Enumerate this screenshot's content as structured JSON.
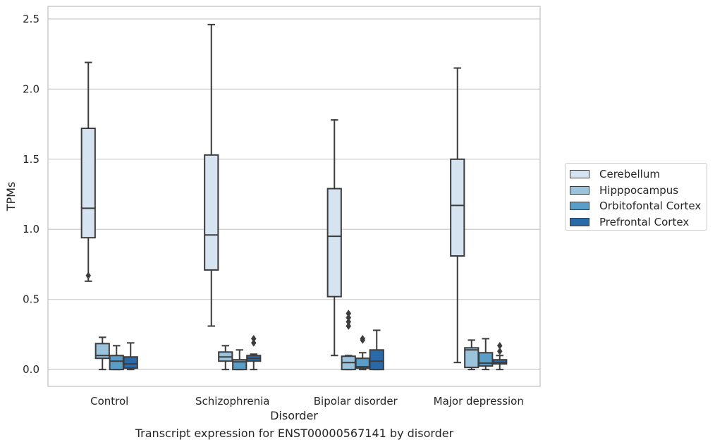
{
  "chart_data": {
    "type": "box",
    "title": "Transcript expression for ENST00000567141 by disorder",
    "xlabel": "Disorder",
    "ylabel": "TPMs",
    "ylim": [
      -0.12,
      2.59
    ],
    "yticks": [
      "0.0",
      "0.5",
      "1.0",
      "1.5",
      "2.0",
      "2.5"
    ],
    "grid": "horizontal",
    "legend_position": "right",
    "categories": [
      "Control",
      "Schizophrenia",
      "Bipolar disorder",
      "Major depression"
    ],
    "series": [
      {
        "name": "Cerebellum",
        "color": "#d6e4f2",
        "boxes": [
          {
            "whislo": 0.63,
            "q1": 0.94,
            "med": 1.15,
            "q3": 1.72,
            "whishi": 2.19,
            "fliers": [
              0.67
            ]
          },
          {
            "whislo": 0.31,
            "q1": 0.71,
            "med": 0.96,
            "q3": 1.53,
            "whishi": 2.46,
            "fliers": []
          },
          {
            "whislo": 0.1,
            "q1": 0.52,
            "med": 0.95,
            "q3": 1.29,
            "whishi": 1.78,
            "fliers": []
          },
          {
            "whislo": 0.05,
            "q1": 0.81,
            "med": 1.17,
            "q3": 1.5,
            "whishi": 2.15,
            "fliers": []
          }
        ]
      },
      {
        "name": "Hipppocampus",
        "color": "#9cc3dc",
        "boxes": [
          {
            "whislo": 0.0,
            "q1": 0.08,
            "med": 0.1,
            "q3": 0.185,
            "whishi": 0.23,
            "fliers": []
          },
          {
            "whislo": 0.0,
            "q1": 0.06,
            "med": 0.09,
            "q3": 0.125,
            "whishi": 0.17,
            "fliers": []
          },
          {
            "whislo": 0.0,
            "q1": 0.0,
            "med": 0.05,
            "q3": 0.095,
            "whishi": 0.1,
            "fliers": [
              0.31,
              0.34,
              0.37,
              0.4
            ]
          },
          {
            "whislo": 0.0,
            "q1": 0.015,
            "med": 0.14,
            "q3": 0.155,
            "whishi": 0.21,
            "fliers": []
          }
        ]
      },
      {
        "name": "Orbitofontal Cortex",
        "color": "#5a9ec8",
        "boxes": [
          {
            "whislo": 0.0,
            "q1": 0.0,
            "med": 0.06,
            "q3": 0.1,
            "whishi": 0.17,
            "fliers": []
          },
          {
            "whislo": 0.0,
            "q1": 0.0,
            "med": 0.055,
            "q3": 0.07,
            "whishi": 0.14,
            "fliers": []
          },
          {
            "whislo": 0.0,
            "q1": 0.01,
            "med": 0.02,
            "q3": 0.08,
            "whishi": 0.12,
            "fliers": [
              0.21,
              0.22
            ]
          },
          {
            "whislo": 0.0,
            "q1": 0.025,
            "med": 0.045,
            "q3": 0.12,
            "whishi": 0.22,
            "fliers": []
          }
        ]
      },
      {
        "name": "Prefrontal Cortex",
        "color": "#2b6aa8",
        "boxes": [
          {
            "whislo": 0.0,
            "q1": 0.01,
            "med": 0.04,
            "q3": 0.09,
            "whishi": 0.19,
            "fliers": []
          },
          {
            "whislo": 0.0,
            "q1": 0.06,
            "med": 0.08,
            "q3": 0.1,
            "whishi": 0.11,
            "fliers": [
              0.19,
              0.22
            ]
          },
          {
            "whislo": 0.0,
            "q1": 0.0,
            "med": 0.06,
            "q3": 0.14,
            "whishi": 0.28,
            "fliers": []
          },
          {
            "whislo": 0.0,
            "q1": 0.04,
            "med": 0.05,
            "q3": 0.07,
            "whishi": 0.1,
            "fliers": [
              0.13,
              0.17
            ]
          }
        ]
      }
    ]
  }
}
